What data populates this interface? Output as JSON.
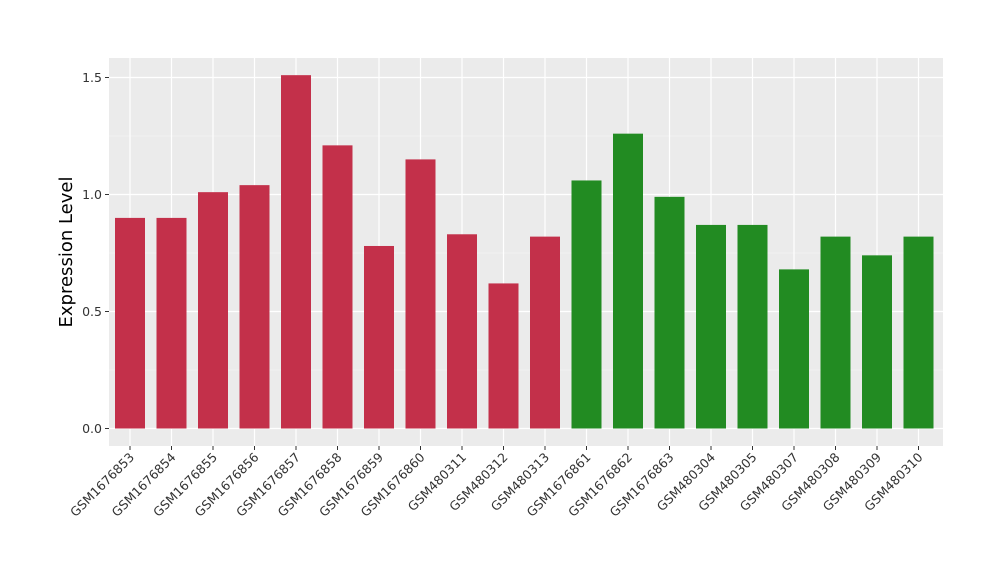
{
  "chart_data": {
    "type": "bar",
    "ylabel": "Expression Level",
    "ylim": [
      0,
      1.55
    ],
    "yticks": [
      "0.0",
      "0.5",
      "1.0",
      "1.5"
    ],
    "grid": true,
    "categories": [
      "GSM1676853",
      "GSM1676854",
      "GSM1676855",
      "GSM1676856",
      "GSM1676857",
      "GSM1676858",
      "GSM1676859",
      "GSM1676860",
      "GSM480311",
      "GSM480312",
      "GSM480313",
      "GSM1676861",
      "GSM1676862",
      "GSM1676863",
      "GSM480304",
      "GSM480305",
      "GSM480307",
      "GSM480308",
      "GSM480309",
      "GSM480310"
    ],
    "values": [
      0.9,
      0.9,
      1.01,
      1.04,
      1.51,
      1.21,
      0.78,
      1.15,
      0.83,
      0.62,
      0.82,
      1.06,
      1.26,
      0.99,
      0.87,
      0.87,
      0.68,
      0.82,
      0.74,
      0.82
    ],
    "groups": [
      0,
      0,
      0,
      0,
      0,
      0,
      0,
      0,
      0,
      0,
      0,
      1,
      1,
      1,
      1,
      1,
      1,
      1,
      1,
      1
    ],
    "group_colors": [
      "#c3304a",
      "#228b22"
    ]
  }
}
